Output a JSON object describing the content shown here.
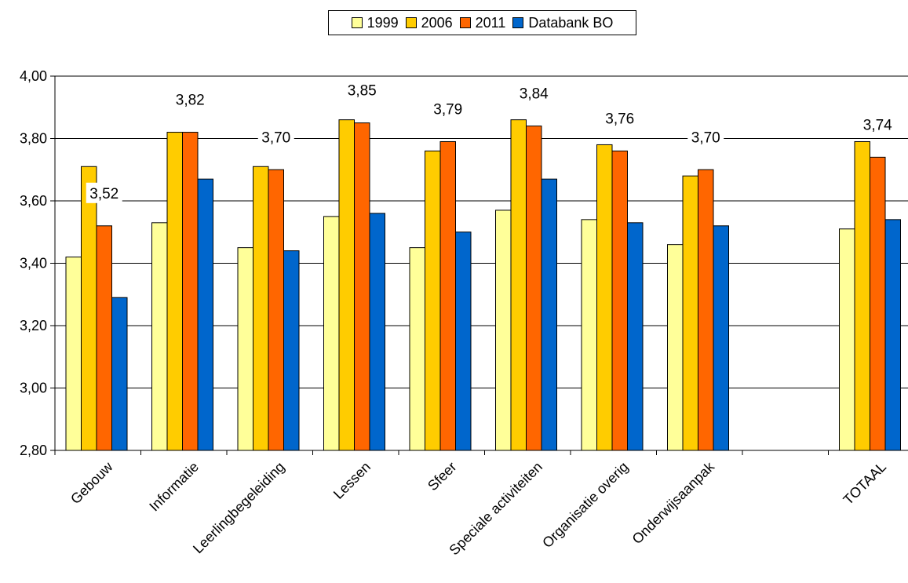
{
  "chart_data": {
    "type": "bar",
    "categories": [
      "Gebouw",
      "Informatie",
      "Leerlingbegeleiding",
      "Lessen",
      "Sfeer",
      "Speciale activiteiten",
      "Organisatie overig",
      "Onderwijsaanpak",
      "",
      "TOTAAL"
    ],
    "series": [
      {
        "name": "1999",
        "color": "#ffff99",
        "values": [
          3.42,
          3.53,
          3.45,
          3.55,
          3.45,
          3.57,
          3.54,
          3.46,
          null,
          3.51
        ]
      },
      {
        "name": "2006",
        "color": "#ffcc00",
        "values": [
          3.71,
          3.82,
          3.71,
          3.86,
          3.76,
          3.86,
          3.78,
          3.68,
          null,
          3.79
        ]
      },
      {
        "name": "2011",
        "color": "#ff6600",
        "values": [
          3.52,
          3.82,
          3.7,
          3.85,
          3.79,
          3.84,
          3.76,
          3.7,
          null,
          3.74
        ]
      },
      {
        "name": "Databank BO",
        "color": "#0066cc",
        "values": [
          3.29,
          3.67,
          3.44,
          3.56,
          3.5,
          3.67,
          3.53,
          3.52,
          null,
          3.54
        ]
      }
    ],
    "data_labels": [
      "3,52",
      "3,82",
      "3,70",
      "3,85",
      "3,79",
      "3,84",
      "3,76",
      "3,70",
      "",
      "3,74"
    ],
    "y_ticks": [
      "2,80",
      "3,00",
      "3,20",
      "3,40",
      "3,60",
      "3,80",
      "4,00"
    ],
    "ylim": [
      2.8,
      4.0
    ],
    "grid": true,
    "legend_position": "top-center",
    "title": "",
    "xlabel": "",
    "ylabel": ""
  }
}
